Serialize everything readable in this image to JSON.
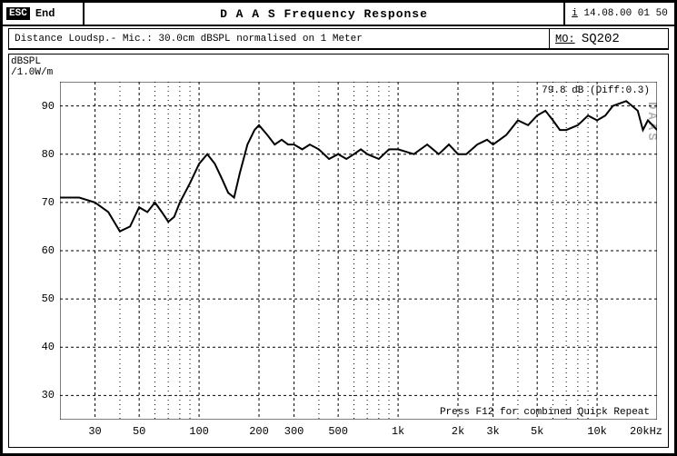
{
  "header": {
    "esc_key": "ESC",
    "esc_label": "End",
    "title": "D A A S   Frequency Response",
    "date_prefix": "i",
    "date_time": "14.08.00 01 50"
  },
  "subheader": {
    "info_text": "Distance Loudsp.- Mic.: 30.0cm dBSPL normalised on 1 Meter",
    "mo_label": "MO:",
    "mo_value": "SQ202"
  },
  "chart": {
    "type": "line",
    "y_axis_label_line1": "dBSPL",
    "y_axis_label_line2": "/1.0W/m",
    "annotation_db": "79.8 dB (Diff:0.3)",
    "watermark": "DAAS",
    "footer_text": "Press F12 for combined Quick Repeat",
    "x_unit_label": "20kHz",
    "y_min": 25,
    "y_max": 95,
    "y_ticks": [
      30,
      40,
      50,
      60,
      70,
      80,
      90
    ],
    "x_scale": "log",
    "x_min": 20,
    "x_max": 20000,
    "x_major_ticks": [
      {
        "v": 30,
        "label": "30"
      },
      {
        "v": 50,
        "label": "50"
      },
      {
        "v": 100,
        "label": "100"
      },
      {
        "v": 200,
        "label": "200"
      },
      {
        "v": 300,
        "label": "300"
      },
      {
        "v": 500,
        "label": "500"
      },
      {
        "v": 1000,
        "label": "1k"
      },
      {
        "v": 2000,
        "label": "2k"
      },
      {
        "v": 3000,
        "label": "3k"
      },
      {
        "v": 5000,
        "label": "5k"
      },
      {
        "v": 10000,
        "label": "10k"
      }
    ],
    "x_minor_ticks": [
      20,
      40,
      60,
      70,
      80,
      90,
      400,
      600,
      700,
      800,
      900,
      4000,
      6000,
      7000,
      8000,
      9000,
      20000
    ],
    "grid_major_color": "#000000",
    "grid_minor_color": "#000000",
    "grid_major_dash": "3,3",
    "grid_minor_dash": "1,4",
    "background_color": "#ffffff",
    "line_color": "#000000",
    "line_width": 2,
    "data": [
      [
        20,
        71
      ],
      [
        25,
        71
      ],
      [
        30,
        70
      ],
      [
        35,
        68
      ],
      [
        40,
        64
      ],
      [
        45,
        65
      ],
      [
        50,
        69
      ],
      [
        55,
        68
      ],
      [
        60,
        70
      ],
      [
        65,
        68
      ],
      [
        70,
        66
      ],
      [
        75,
        67
      ],
      [
        80,
        70
      ],
      [
        90,
        74
      ],
      [
        100,
        78
      ],
      [
        110,
        80
      ],
      [
        120,
        78
      ],
      [
        130,
        75
      ],
      [
        140,
        72
      ],
      [
        150,
        71
      ],
      [
        160,
        76
      ],
      [
        175,
        82
      ],
      [
        190,
        85
      ],
      [
        200,
        86
      ],
      [
        220,
        84
      ],
      [
        240,
        82
      ],
      [
        260,
        83
      ],
      [
        280,
        82
      ],
      [
        300,
        82
      ],
      [
        330,
        81
      ],
      [
        360,
        82
      ],
      [
        400,
        81
      ],
      [
        450,
        79
      ],
      [
        500,
        80
      ],
      [
        550,
        79
      ],
      [
        600,
        80
      ],
      [
        650,
        81
      ],
      [
        700,
        80
      ],
      [
        800,
        79
      ],
      [
        900,
        81
      ],
      [
        1000,
        81
      ],
      [
        1200,
        80
      ],
      [
        1400,
        82
      ],
      [
        1600,
        80
      ],
      [
        1800,
        82
      ],
      [
        2000,
        80
      ],
      [
        2200,
        80
      ],
      [
        2500,
        82
      ],
      [
        2800,
        83
      ],
      [
        3000,
        82
      ],
      [
        3500,
        84
      ],
      [
        4000,
        87
      ],
      [
        4500,
        86
      ],
      [
        5000,
        88
      ],
      [
        5500,
        89
      ],
      [
        6000,
        87
      ],
      [
        6500,
        85
      ],
      [
        7000,
        85
      ],
      [
        8000,
        86
      ],
      [
        9000,
        88
      ],
      [
        10000,
        87
      ],
      [
        11000,
        88
      ],
      [
        12000,
        90
      ],
      [
        14000,
        91
      ],
      [
        15000,
        90
      ],
      [
        16000,
        89
      ],
      [
        17000,
        85
      ],
      [
        18000,
        87
      ],
      [
        19000,
        86
      ],
      [
        20000,
        85
      ]
    ]
  }
}
